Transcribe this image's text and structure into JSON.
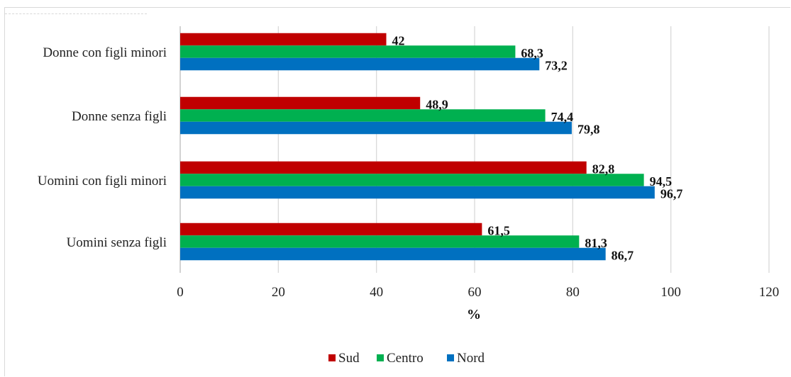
{
  "chart_data": {
    "type": "bar",
    "orientation": "horizontal",
    "categories": [
      "Donne con figli minori",
      "Donne senza figli",
      "Uomini con figli minori",
      "Uomini senza figli"
    ],
    "series": [
      {
        "name": "Sud",
        "color": "#c00000",
        "values": [
          42,
          48.9,
          82.8,
          61.5
        ],
        "labels": [
          "42",
          "48,9",
          "82,8",
          "61,5"
        ]
      },
      {
        "name": "Centro",
        "color": "#00b050",
        "values": [
          68.3,
          74.4,
          94.5,
          81.3
        ],
        "labels": [
          "68,3",
          "74,4",
          "94,5",
          "81,3"
        ]
      },
      {
        "name": "Nord",
        "color": "#0070c0",
        "values": [
          73.2,
          79.8,
          96.7,
          86.7
        ],
        "labels": [
          "73,2",
          "79,8",
          "96,7",
          "86,7"
        ]
      }
    ],
    "xlabel": "%",
    "ylabel": "",
    "xlim": [
      0,
      120
    ],
    "xticks": [
      "0",
      "20",
      "40",
      "60",
      "80",
      "100",
      "120"
    ],
    "grid": true,
    "legend_position": "bottom"
  }
}
